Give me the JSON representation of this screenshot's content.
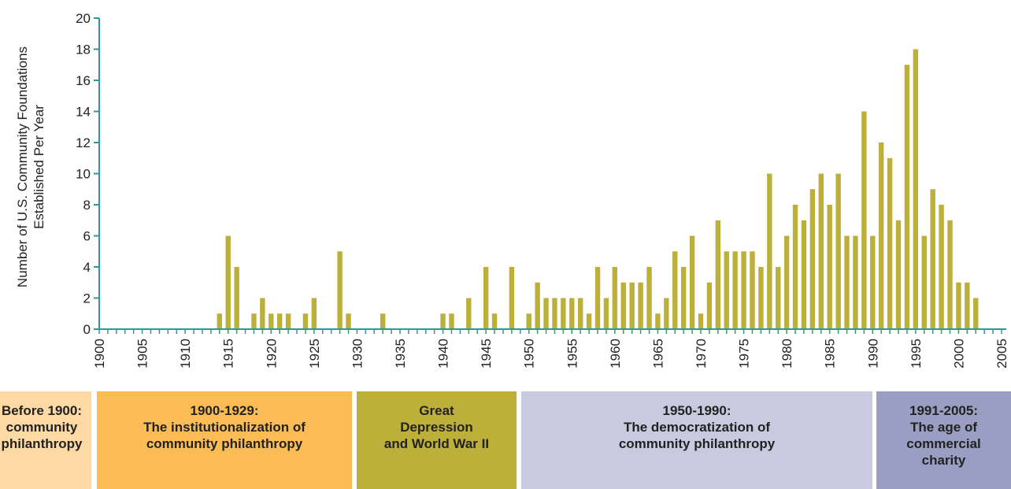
{
  "chart_data": {
    "type": "bar",
    "ylabel": "Number of U.S. Community Foundations\nEstablished Per Year",
    "ylim": [
      0,
      20
    ],
    "yticks": [
      0,
      2,
      4,
      6,
      8,
      10,
      12,
      14,
      16,
      18,
      20
    ],
    "xlim": [
      1900,
      2005
    ],
    "xticks": [
      1900,
      1905,
      1910,
      1915,
      1920,
      1925,
      1930,
      1935,
      1940,
      1945,
      1950,
      1955,
      1960,
      1965,
      1970,
      1975,
      1980,
      1985,
      1990,
      1995,
      2000,
      2005
    ],
    "color": "#bcaf3a",
    "x": [
      1914,
      1915,
      1916,
      1918,
      1919,
      1920,
      1921,
      1922,
      1924,
      1925,
      1928,
      1929,
      1933,
      1940,
      1941,
      1943,
      1945,
      1946,
      1948,
      1950,
      1951,
      1952,
      1953,
      1954,
      1955,
      1956,
      1957,
      1958,
      1959,
      1960,
      1961,
      1962,
      1963,
      1964,
      1965,
      1966,
      1967,
      1968,
      1969,
      1970,
      1971,
      1972,
      1973,
      1974,
      1975,
      1976,
      1977,
      1978,
      1979,
      1980,
      1981,
      1982,
      1983,
      1984,
      1985,
      1986,
      1987,
      1988,
      1989,
      1990,
      1991,
      1992,
      1993,
      1994,
      1995,
      1996,
      1997,
      1998,
      1999,
      2000,
      2001,
      2002
    ],
    "values": [
      1,
      6,
      4,
      1,
      2,
      1,
      1,
      1,
      1,
      2,
      5,
      1,
      1,
      1,
      1,
      2,
      4,
      1,
      4,
      1,
      3,
      2,
      2,
      2,
      2,
      2,
      1,
      4,
      2,
      4,
      3,
      3,
      3,
      4,
      1,
      2,
      5,
      4,
      6,
      1,
      3,
      7,
      5,
      5,
      5,
      5,
      4,
      10,
      4,
      6,
      8,
      7,
      9,
      10,
      8,
      10,
      6,
      6,
      14,
      6,
      12,
      11,
      7,
      17,
      18,
      6,
      9,
      8,
      7,
      3,
      3,
      2
    ]
  },
  "eras": [
    {
      "label": "Before 1900:\ncommunity\nphilanthropy",
      "color": "#fdd9a3"
    },
    {
      "label": "1900-1929:\nThe institutionalization of\ncommunity philanthropy",
      "color": "#fbbc55"
    },
    {
      "label": "Great\nDepression\nand World War II",
      "color": "#bcaf3a"
    },
    {
      "label": "1950-1990:\nThe democratization of\ncommunity philanthropy",
      "color": "#c9cadf"
    },
    {
      "label": "1991-2005:\nThe age of\ncommercial\ncharity",
      "color": "#9a9ec2"
    }
  ],
  "axis_color": "#2a9a9a"
}
